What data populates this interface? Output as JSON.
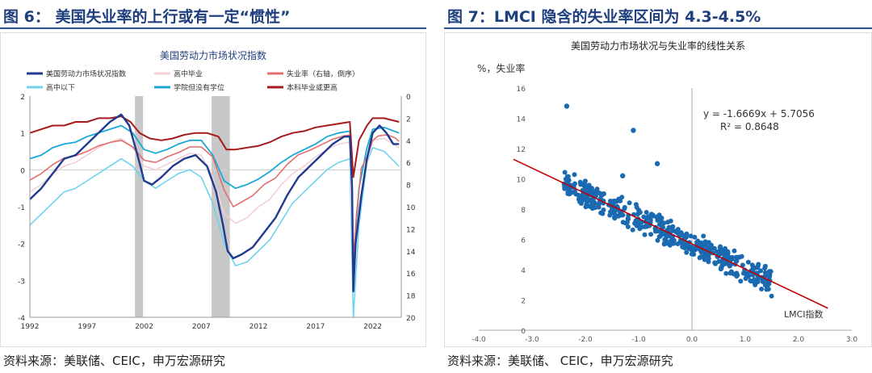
{
  "left_panel": {
    "figure_title": "图 6： 美国失业率的上行或有一定“惯性”",
    "source": "资料来源：美联储、CEIC，申万宏源研究"
  },
  "right_panel": {
    "figure_title": "图 7：LMCI 隐含的失业率区间为 4.3-4.5%",
    "source": "资料来源：美联储、 CEIC，申万宏源研究"
  },
  "colors": {
    "title": "#1f3f7f",
    "lmci": "#1f3a8f",
    "high_school_grad": "#f3cfd6",
    "unemployment": "#e46d6d",
    "below_high_school": "#6fd3ef",
    "some_college": "#19a8d6",
    "bachelor_plus": "#a51b1b",
    "recession": "#c8c8c8",
    "scatter_point": "#1a6ab2",
    "trendline": "#c00000"
  },
  "chart_data": [
    {
      "type": "line",
      "title": "美国劳动力市场状况指数",
      "x_ticks": [
        "1992",
        "1997",
        "2002",
        "2007",
        "2012",
        "2017",
        "2022"
      ],
      "x_range": [
        1992,
        2024.5
      ],
      "ylim": [
        -4,
        2
      ],
      "y_ticks": [
        "2",
        "1",
        "0",
        "-1",
        "-2",
        "-3",
        "-4"
      ],
      "y2lim": [
        0,
        20
      ],
      "y2_inverted": true,
      "y2_ticks": [
        "0",
        "2",
        "4",
        "6",
        "8",
        "10",
        "12",
        "14",
        "16",
        "18",
        "20"
      ],
      "recession_shading": [
        [
          2001.2,
          2001.9
        ],
        [
          2007.9,
          2009.5
        ]
      ],
      "legend": [
        "美国劳动力市场状况指数",
        "高中毕业",
        "失业率（右轴，倒序）",
        "高中以下",
        "学院但没有学位",
        "本科毕业或更高"
      ],
      "series": [
        {
          "name": "美国劳动力市场状况指数",
          "axis": "left",
          "color_key": "lmci",
          "points": [
            [
              1992,
              -0.8
            ],
            [
              1993,
              -0.5
            ],
            [
              1994,
              -0.1
            ],
            [
              1995,
              0.3
            ],
            [
              1996,
              0.4
            ],
            [
              1997,
              0.7
            ],
            [
              1998,
              1.0
            ],
            [
              1999,
              1.3
            ],
            [
              2000,
              1.5
            ],
            [
              2000.7,
              1.2
            ],
            [
              2001.5,
              0.3
            ],
            [
              2002,
              -0.3
            ],
            [
              2002.7,
              -0.4
            ],
            [
              2003.5,
              -0.2
            ],
            [
              2004.5,
              0.1
            ],
            [
              2005.5,
              0.3
            ],
            [
              2006.5,
              0.4
            ],
            [
              2007.5,
              0.1
            ],
            [
              2008.3,
              -0.6
            ],
            [
              2008.9,
              -1.5
            ],
            [
              2009.3,
              -2.2
            ],
            [
              2009.8,
              -2.4
            ],
            [
              2010.5,
              -2.3
            ],
            [
              2011.5,
              -2.1
            ],
            [
              2012.5,
              -1.7
            ],
            [
              2013.5,
              -1.3
            ],
            [
              2014.5,
              -0.7
            ],
            [
              2015.5,
              -0.2
            ],
            [
              2016.5,
              0.1
            ],
            [
              2017.5,
              0.4
            ],
            [
              2018.5,
              0.7
            ],
            [
              2019.5,
              0.9
            ],
            [
              2020.0,
              0.9
            ],
            [
              2020.2,
              -0.5
            ],
            [
              2020.3,
              -3.3
            ],
            [
              2020.5,
              -2.0
            ],
            [
              2021.0,
              -0.7
            ],
            [
              2021.5,
              0.3
            ],
            [
              2022.0,
              1.0
            ],
            [
              2022.6,
              1.2
            ],
            [
              2023.2,
              1.0
            ],
            [
              2023.8,
              0.7
            ],
            [
              2024.3,
              0.7
            ]
          ]
        },
        {
          "name": "失业率（右轴，倒序）",
          "axis": "right",
          "color_key": "unemployment",
          "points": [
            [
              1992,
              7.6
            ],
            [
              1993,
              7.0
            ],
            [
              1994,
              6.2
            ],
            [
              1995,
              5.6
            ],
            [
              1996,
              5.4
            ],
            [
              1997,
              5.0
            ],
            [
              1998,
              4.5
            ],
            [
              1999,
              4.2
            ],
            [
              2000,
              4.0
            ],
            [
              2001,
              4.6
            ],
            [
              2002,
              5.8
            ],
            [
              2003,
              6.0
            ],
            [
              2004,
              5.5
            ],
            [
              2005,
              5.1
            ],
            [
              2006,
              4.6
            ],
            [
              2007,
              4.6
            ],
            [
              2008,
              5.5
            ],
            [
              2009,
              8.5
            ],
            [
              2009.8,
              10.0
            ],
            [
              2010.5,
              9.6
            ],
            [
              2011.5,
              9.0
            ],
            [
              2012.5,
              8.0
            ],
            [
              2013.5,
              7.4
            ],
            [
              2014.5,
              6.2
            ],
            [
              2015.5,
              5.3
            ],
            [
              2016.5,
              4.9
            ],
            [
              2017.5,
              4.4
            ],
            [
              2018.5,
              3.9
            ],
            [
              2019.5,
              3.6
            ],
            [
              2020.1,
              3.5
            ],
            [
              2020.3,
              14.7
            ],
            [
              2020.6,
              10.5
            ],
            [
              2021.0,
              6.5
            ],
            [
              2021.5,
              5.5
            ],
            [
              2022.0,
              4.0
            ],
            [
              2022.5,
              3.6
            ],
            [
              2023.3,
              3.5
            ],
            [
              2024.0,
              3.8
            ],
            [
              2024.3,
              4.1
            ]
          ]
        },
        {
          "name": "本科毕业或更高",
          "axis": "left",
          "color_key": "bachelor_plus",
          "points": [
            [
              1992,
              1.0
            ],
            [
              1993,
              1.1
            ],
            [
              1994,
              1.2
            ],
            [
              1995,
              1.2
            ],
            [
              1996,
              1.3
            ],
            [
              1997,
              1.3
            ],
            [
              1998,
              1.4
            ],
            [
              1999,
              1.4
            ],
            [
              2000,
              1.45
            ],
            [
              2000.8,
              1.3
            ],
            [
              2001.6,
              1.0
            ],
            [
              2002.5,
              0.85
            ],
            [
              2003.5,
              0.8
            ],
            [
              2004.5,
              0.85
            ],
            [
              2005.5,
              0.95
            ],
            [
              2006.5,
              1.0
            ],
            [
              2007.5,
              1.0
            ],
            [
              2008.5,
              0.9
            ],
            [
              2009.2,
              0.55
            ],
            [
              2010,
              0.55
            ],
            [
              2011,
              0.6
            ],
            [
              2012,
              0.65
            ],
            [
              2013,
              0.75
            ],
            [
              2014,
              0.9
            ],
            [
              2015,
              1.0
            ],
            [
              2016,
              1.05
            ],
            [
              2017,
              1.15
            ],
            [
              2018,
              1.2
            ],
            [
              2019,
              1.25
            ],
            [
              2020.0,
              1.3
            ],
            [
              2020.3,
              -0.2
            ],
            [
              2020.8,
              0.8
            ],
            [
              2021.5,
              1.2
            ],
            [
              2022.0,
              1.4
            ],
            [
              2023.0,
              1.4
            ],
            [
              2024.3,
              1.3
            ]
          ]
        },
        {
          "name": "学院但没有学位",
          "axis": "left",
          "color_key": "some_college",
          "points": [
            [
              1992,
              0.3
            ],
            [
              1993,
              0.4
            ],
            [
              1994,
              0.6
            ],
            [
              1995,
              0.7
            ],
            [
              1996,
              0.75
            ],
            [
              1997,
              0.9
            ],
            [
              1998,
              1.0
            ],
            [
              1999,
              1.1
            ],
            [
              2000,
              1.2
            ],
            [
              2001,
              1.0
            ],
            [
              2002,
              0.55
            ],
            [
              2003,
              0.45
            ],
            [
              2004,
              0.55
            ],
            [
              2005,
              0.7
            ],
            [
              2006,
              0.8
            ],
            [
              2007,
              0.8
            ],
            [
              2008,
              0.4
            ],
            [
              2009,
              -0.3
            ],
            [
              2010,
              -0.5
            ],
            [
              2011,
              -0.4
            ],
            [
              2012,
              -0.25
            ],
            [
              2013,
              -0.05
            ],
            [
              2014,
              0.2
            ],
            [
              2015,
              0.4
            ],
            [
              2016,
              0.55
            ],
            [
              2017,
              0.7
            ],
            [
              2018,
              0.9
            ],
            [
              2019,
              1.0
            ],
            [
              2020.0,
              1.05
            ],
            [
              2020.3,
              -2.5
            ],
            [
              2020.8,
              -0.5
            ],
            [
              2021.5,
              0.6
            ],
            [
              2022.0,
              1.1
            ],
            [
              2023.0,
              1.15
            ],
            [
              2024.3,
              1.0
            ]
          ]
        },
        {
          "name": "高中毕业",
          "axis": "left",
          "color_key": "high_school_grad",
          "points": [
            [
              1992,
              -0.6
            ],
            [
              1993,
              -0.4
            ],
            [
              1994,
              -0.1
            ],
            [
              1995,
              0.1
            ],
            [
              1996,
              0.2
            ],
            [
              1997,
              0.4
            ],
            [
              1998,
              0.6
            ],
            [
              1999,
              0.75
            ],
            [
              2000,
              0.85
            ],
            [
              2001,
              0.6
            ],
            [
              2002,
              0.1
            ],
            [
              2003,
              0.0
            ],
            [
              2004,
              0.15
            ],
            [
              2005,
              0.3
            ],
            [
              2006,
              0.45
            ],
            [
              2007,
              0.4
            ],
            [
              2008,
              -0.2
            ],
            [
              2009,
              -1.2
            ],
            [
              2010,
              -1.45
            ],
            [
              2011,
              -1.3
            ],
            [
              2012,
              -1.0
            ],
            [
              2013,
              -0.8
            ],
            [
              2014,
              -0.4
            ],
            [
              2015,
              -0.1
            ],
            [
              2016,
              0.1
            ],
            [
              2017,
              0.35
            ],
            [
              2018,
              0.55
            ],
            [
              2019,
              0.7
            ],
            [
              2020.0,
              0.75
            ],
            [
              2020.3,
              -3.0
            ],
            [
              2020.8,
              -1.0
            ],
            [
              2021.5,
              0.2
            ],
            [
              2022.0,
              0.8
            ],
            [
              2023.0,
              0.85
            ],
            [
              2024.3,
              0.6
            ]
          ]
        },
        {
          "name": "高中以下",
          "axis": "left",
          "color_key": "below_high_school",
          "points": [
            [
              1992,
              -1.5
            ],
            [
              1993,
              -1.2
            ],
            [
              1994,
              -0.9
            ],
            [
              1995,
              -0.6
            ],
            [
              1996,
              -0.5
            ],
            [
              1997,
              -0.3
            ],
            [
              1998,
              -0.1
            ],
            [
              1999,
              0.1
            ],
            [
              2000,
              0.3
            ],
            [
              2001,
              0.1
            ],
            [
              2002,
              -0.3
            ],
            [
              2003,
              -0.5
            ],
            [
              2004,
              -0.3
            ],
            [
              2005,
              -0.1
            ],
            [
              2006,
              0.0
            ],
            [
              2007,
              -0.2
            ],
            [
              2008,
              -0.9
            ],
            [
              2009,
              -2.0
            ],
            [
              2010,
              -2.6
            ],
            [
              2011,
              -2.5
            ],
            [
              2012,
              -2.2
            ],
            [
              2013,
              -1.9
            ],
            [
              2014,
              -1.4
            ],
            [
              2015,
              -0.9
            ],
            [
              2016,
              -0.6
            ],
            [
              2017,
              -0.3
            ],
            [
              2018,
              0.0
            ],
            [
              2019,
              0.2
            ],
            [
              2020.0,
              0.3
            ],
            [
              2020.3,
              -4.0
            ],
            [
              2020.8,
              -1.5
            ],
            [
              2021.5,
              0.2
            ],
            [
              2022.0,
              0.6
            ],
            [
              2023.0,
              0.5
            ],
            [
              2024.3,
              0.1
            ]
          ]
        }
      ]
    },
    {
      "type": "scatter",
      "title": "美国劳动力市场状况与失业率的线性关系",
      "ylabel": "%，失业率",
      "xlabel": "LMCI指数",
      "xlim": [
        -4.0,
        3.0
      ],
      "ylim": [
        0,
        16
      ],
      "x_ticks": [
        "-4.0",
        "-3.0",
        "-2.0",
        "-1.0",
        "0.0",
        "1.0",
        "2.0",
        "3.0"
      ],
      "y_ticks": [
        "0",
        "2",
        "4",
        "6",
        "8",
        "10",
        "12",
        "14",
        "16"
      ],
      "trendline": {
        "slope": -1.6669,
        "intercept": 5.7056,
        "x_range": [
          -3.35,
          2.55
        ]
      },
      "equation": "y = -1.6669x + 5.7056",
      "r_squared": "R² = 0.8648",
      "outliers": [
        [
          -2.35,
          14.8
        ],
        [
          -1.1,
          13.2
        ],
        [
          -1.3,
          10.2
        ],
        [
          -0.65,
          11.0
        ]
      ],
      "cluster": {
        "x_from": -2.4,
        "x_to": 1.5,
        "count": 440
      }
    }
  ]
}
